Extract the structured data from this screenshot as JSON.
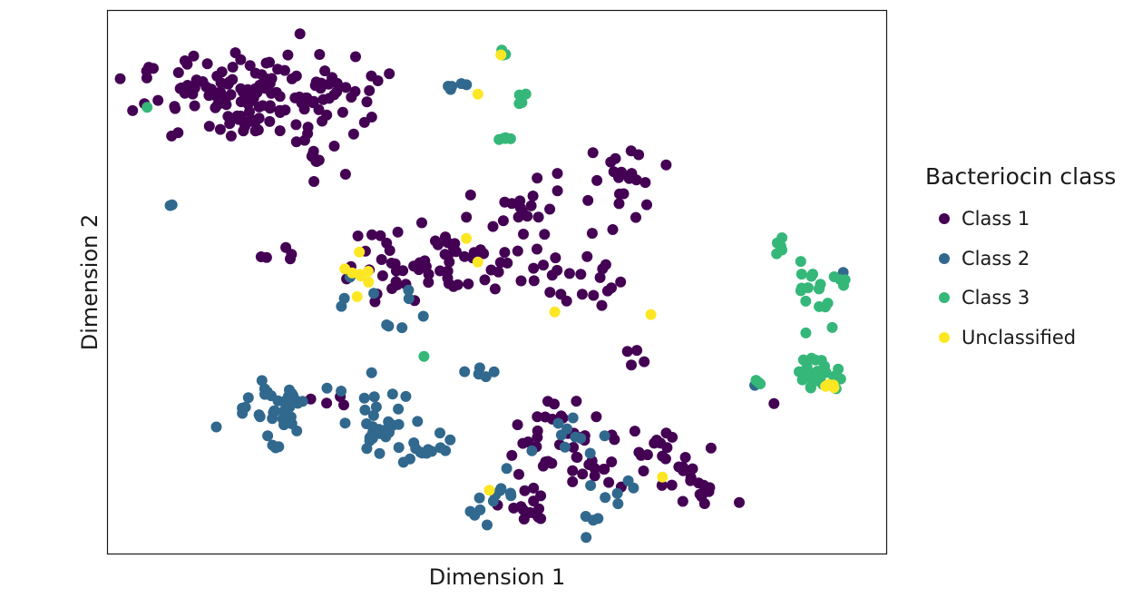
{
  "chart_data": {
    "type": "scatter",
    "title": "",
    "xlabel": "Dimension 1",
    "ylabel": "Dimension 2",
    "xlim": [
      0,
      100
    ],
    "ylim": [
      0,
      100
    ],
    "grid": false,
    "axis_ticks": false,
    "legend": {
      "title": "Bacteriocin class",
      "placement": "right",
      "entries": [
        "Class 1",
        "Class 2",
        "Class 3",
        "Unclassified"
      ]
    },
    "series": [
      {
        "name": "Class 1",
        "color": "#440154",
        "centers": [
          {
            "x": 17.4,
            "y": 84.5,
            "sx": 7.0,
            "sy": 4.2,
            "n": 125
          },
          {
            "x": 30.4,
            "y": 86.0,
            "sx": 3.0,
            "sy": 2.5,
            "n": 22
          },
          {
            "x": 26.7,
            "y": 73.0,
            "sx": 2.5,
            "sy": 2.0,
            "n": 8
          },
          {
            "x": 39.0,
            "y": 54.0,
            "sx": 5.0,
            "sy": 4.0,
            "n": 40
          },
          {
            "x": 48.0,
            "y": 54.0,
            "sx": 4.0,
            "sy": 4.0,
            "n": 30
          },
          {
            "x": 59.0,
            "y": 51.0,
            "sx": 3.0,
            "sy": 3.0,
            "n": 20
          },
          {
            "x": 66.0,
            "y": 67.0,
            "sx": 3.0,
            "sy": 5.0,
            "n": 22
          },
          {
            "x": 56.0,
            "y": 67.0,
            "sx": 2.0,
            "sy": 2.0,
            "n": 8
          },
          {
            "x": 52.0,
            "y": 63.0,
            "sx": 2.0,
            "sy": 2.0,
            "n": 8
          },
          {
            "x": 57.0,
            "y": 20.0,
            "sx": 3.0,
            "sy": 3.5,
            "n": 26
          },
          {
            "x": 62.0,
            "y": 16.0,
            "sx": 3.0,
            "sy": 3.0,
            "n": 20
          },
          {
            "x": 70.0,
            "y": 19.0,
            "sx": 2.0,
            "sy": 2.5,
            "n": 10
          },
          {
            "x": 75.0,
            "y": 11.0,
            "sx": 2.5,
            "sy": 3.0,
            "n": 22
          },
          {
            "x": 55.0,
            "y": 7.0,
            "sx": 2.0,
            "sy": 2.5,
            "n": 14
          },
          {
            "x": 68.0,
            "y": 35.0,
            "sx": 1.0,
            "sy": 1.0,
            "n": 4
          },
          {
            "x": 26.0,
            "y": 28.0,
            "sx": 1.5,
            "sy": 1.5,
            "n": 4
          },
          {
            "x": 20.0,
            "y": 54.0,
            "sx": 2.0,
            "sy": 2.0,
            "n": 5
          },
          {
            "x": 86.0,
            "y": 26.5,
            "sx": 0.3,
            "sy": 0.3,
            "n": 1
          }
        ]
      },
      {
        "name": "Class 2",
        "color": "#31688e",
        "centers": [
          {
            "x": 21.0,
            "y": 26.0,
            "sx": 3.0,
            "sy": 3.0,
            "n": 40
          },
          {
            "x": 34.5,
            "y": 22.0,
            "sx": 2.0,
            "sy": 3.5,
            "n": 30
          },
          {
            "x": 40.0,
            "y": 18.0,
            "sx": 3.0,
            "sy": 2.0,
            "n": 14
          },
          {
            "x": 50.0,
            "y": 9.0,
            "sx": 2.5,
            "sy": 2.5,
            "n": 12
          },
          {
            "x": 64.0,
            "y": 7.0,
            "sx": 2.0,
            "sy": 2.5,
            "n": 10
          },
          {
            "x": 59.0,
            "y": 20.0,
            "sx": 2.0,
            "sy": 2.0,
            "n": 10
          },
          {
            "x": 47.0,
            "y": 32.5,
            "sx": 1.0,
            "sy": 0.8,
            "n": 5
          },
          {
            "x": 36.0,
            "y": 44.0,
            "sx": 3.0,
            "sy": 3.0,
            "n": 10
          },
          {
            "x": 44.0,
            "y": 87.0,
            "sx": 1.2,
            "sy": 0.5,
            "n": 5
          },
          {
            "x": 8.0,
            "y": 64.5,
            "sx": 0.4,
            "sy": 0.6,
            "n": 2
          },
          {
            "x": 95.0,
            "y": 51.5,
            "sx": 0.4,
            "sy": 0.4,
            "n": 1
          },
          {
            "x": 83.5,
            "y": 30.0,
            "sx": 0.4,
            "sy": 0.4,
            "n": 1
          }
        ]
      },
      {
        "name": "Class 3",
        "color": "#35b779",
        "centers": [
          {
            "x": 92.5,
            "y": 49.0,
            "sx": 2.0,
            "sy": 3.0,
            "n": 20
          },
          {
            "x": 92.0,
            "y": 32.0,
            "sx": 1.5,
            "sy": 1.5,
            "n": 26
          },
          {
            "x": 87.0,
            "y": 57.0,
            "sx": 0.6,
            "sy": 1.5,
            "n": 5
          },
          {
            "x": 84.5,
            "y": 30.5,
            "sx": 0.6,
            "sy": 0.3,
            "n": 3
          },
          {
            "x": 51.0,
            "y": 77.0,
            "sx": 0.5,
            "sy": 0.4,
            "n": 5
          },
          {
            "x": 50.5,
            "y": 94.0,
            "sx": 0.6,
            "sy": 1.2,
            "n": 4
          },
          {
            "x": 53.0,
            "y": 84.0,
            "sx": 0.5,
            "sy": 1.2,
            "n": 4
          },
          {
            "x": 4.5,
            "y": 83.0,
            "sx": 0.3,
            "sy": 0.3,
            "n": 1
          },
          {
            "x": 40.5,
            "y": 35.5,
            "sx": 0.3,
            "sy": 0.3,
            "n": 1
          }
        ]
      },
      {
        "name": "Unclassified",
        "color": "#fde725",
        "centers": [
          {
            "x": 33.0,
            "y": 51.5,
            "sx": 1.2,
            "sy": 1.8,
            "n": 8
          },
          {
            "x": 46.0,
            "y": 58.0,
            "sx": 0.3,
            "sy": 0.3,
            "n": 1
          },
          {
            "x": 47.5,
            "y": 53.5,
            "sx": 0.3,
            "sy": 0.3,
            "n": 1
          },
          {
            "x": 57.5,
            "y": 44.0,
            "sx": 0.3,
            "sy": 0.3,
            "n": 1
          },
          {
            "x": 70.0,
            "y": 43.5,
            "sx": 0.3,
            "sy": 0.3,
            "n": 1
          },
          {
            "x": 94.0,
            "y": 29.5,
            "sx": 0.6,
            "sy": 0.4,
            "n": 4
          },
          {
            "x": 71.5,
            "y": 12.5,
            "sx": 0.3,
            "sy": 0.3,
            "n": 1
          },
          {
            "x": 49.0,
            "y": 10.0,
            "sx": 0.3,
            "sy": 0.3,
            "n": 1
          },
          {
            "x": 47.5,
            "y": 85.5,
            "sx": 0.3,
            "sy": 0.3,
            "n": 1
          },
          {
            "x": 50.5,
            "y": 93.0,
            "sx": 0.3,
            "sy": 0.3,
            "n": 1
          }
        ]
      }
    ]
  }
}
